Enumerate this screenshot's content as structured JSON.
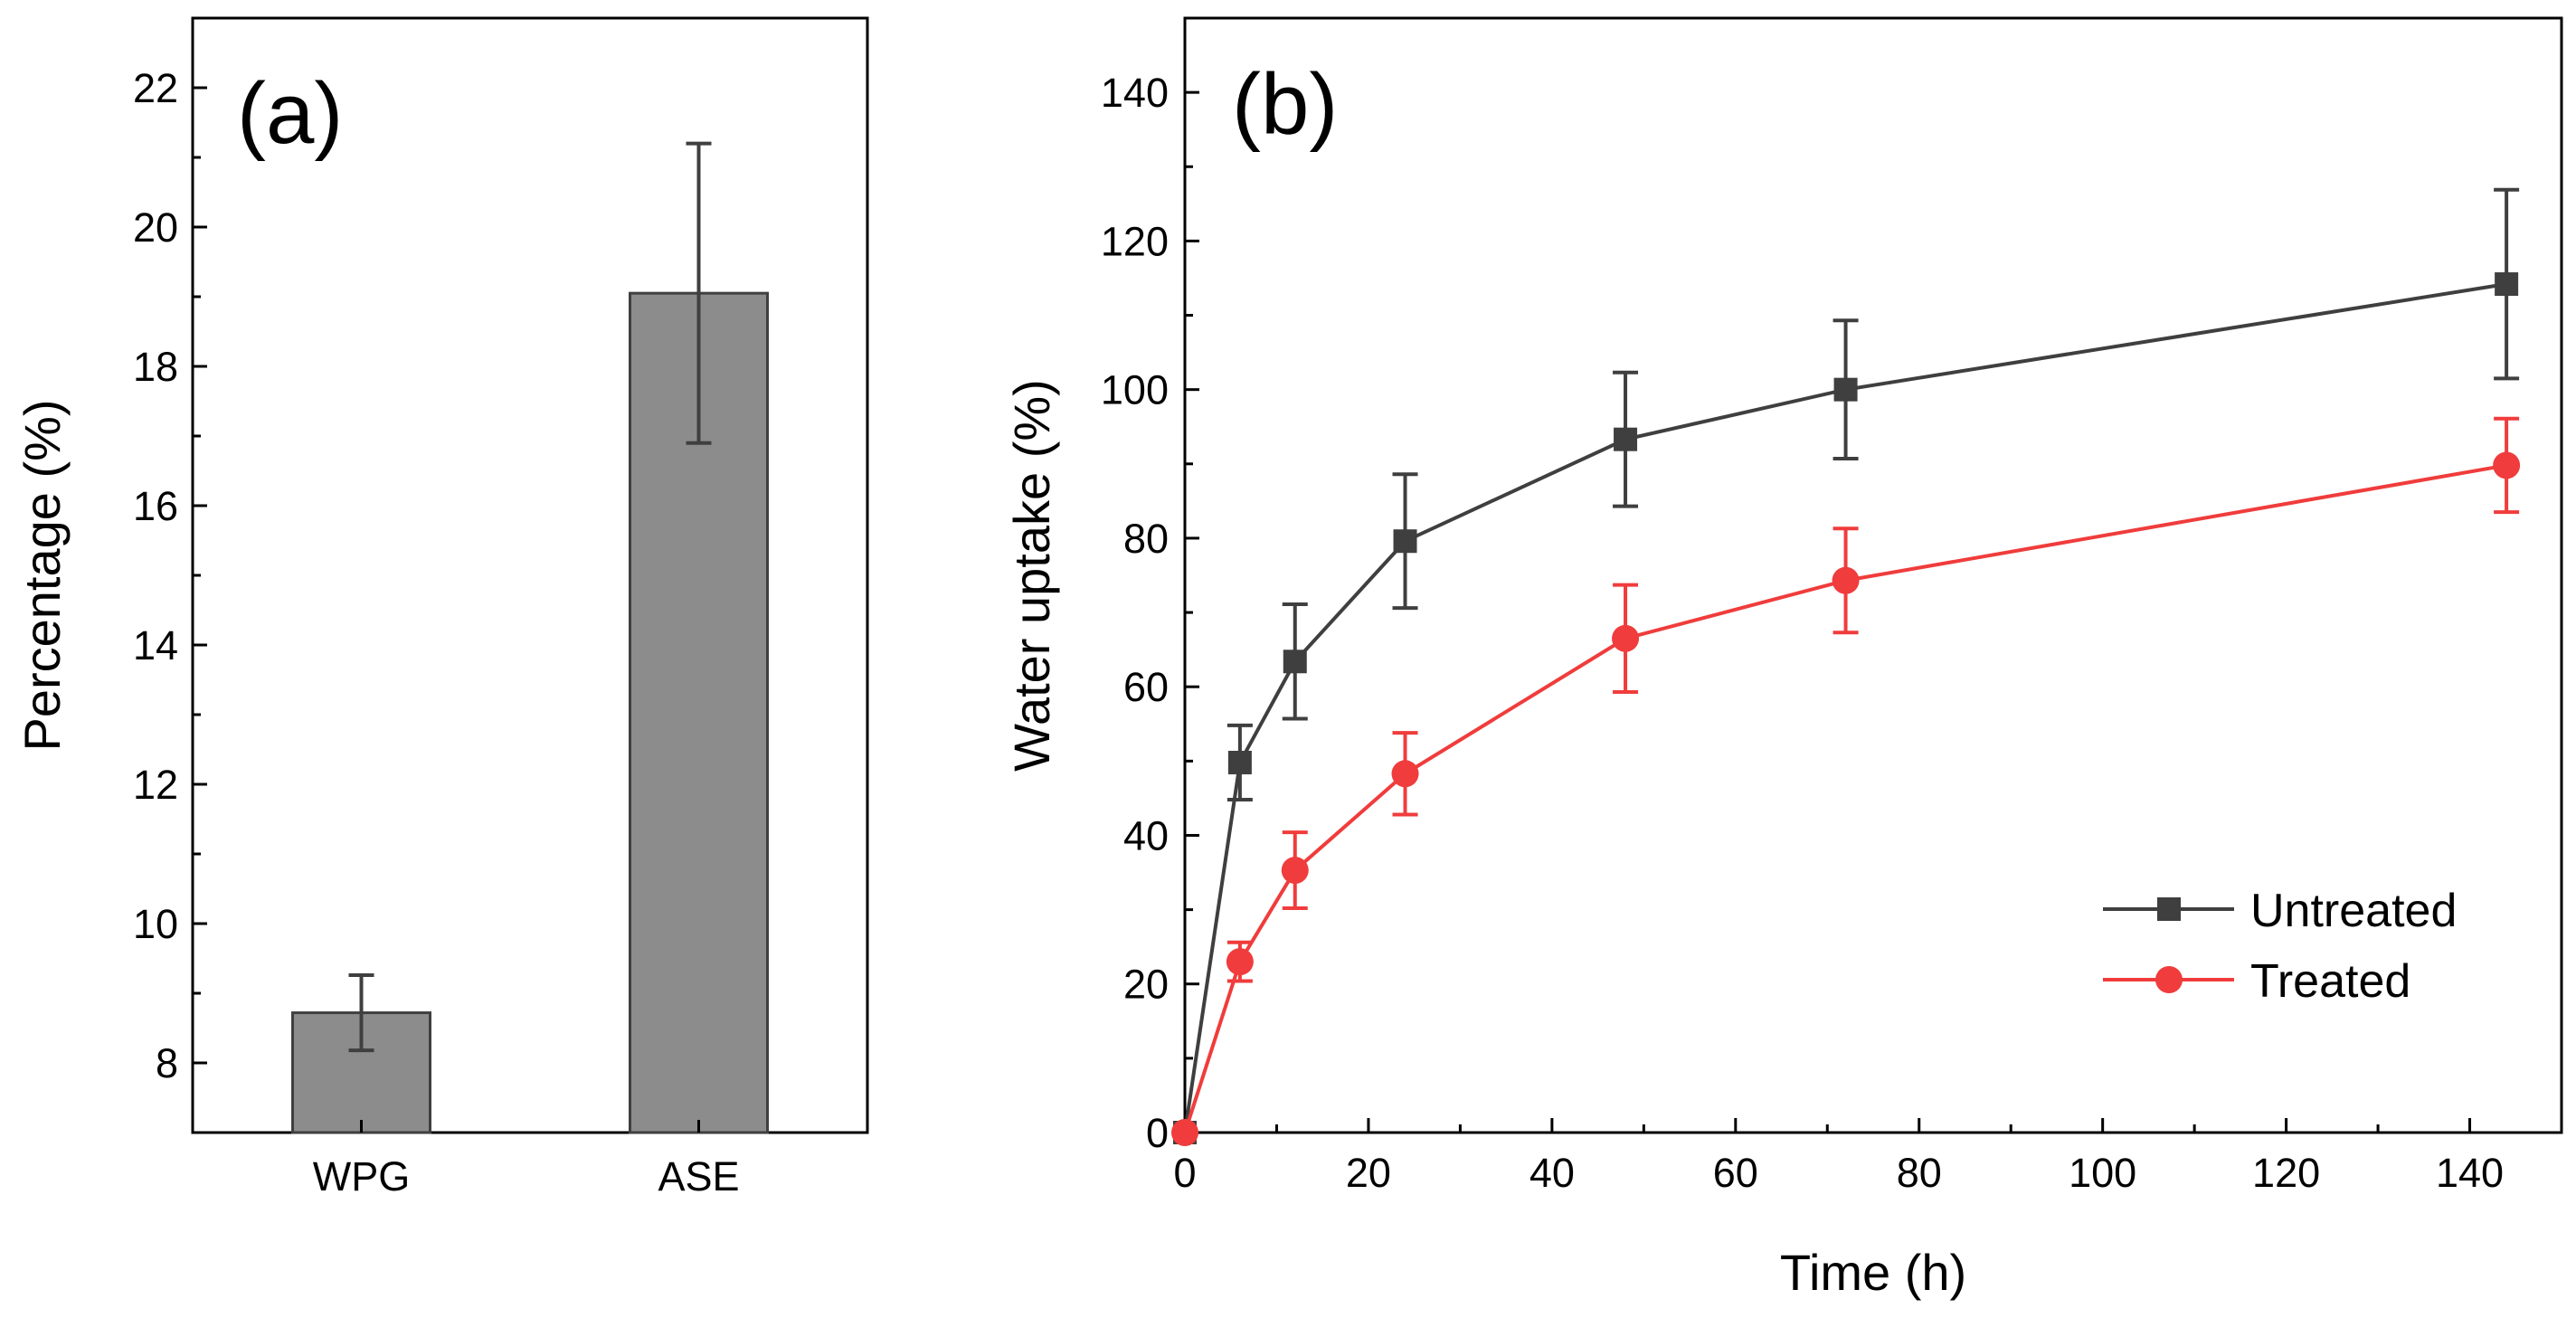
{
  "chart_data": [
    {
      "type": "bar",
      "panel_label": "(a)",
      "categories": [
        "WPG",
        "ASE"
      ],
      "values": [
        8.72,
        19.05
      ],
      "errors": [
        0.54,
        2.15
      ],
      "xlabel": "",
      "ylabel": "Percentage (%)",
      "ylim": [
        7.0,
        23.0
      ],
      "yticks": [
        8,
        10,
        12,
        14,
        16,
        18,
        20,
        22
      ],
      "ytick_labels": [
        "8",
        "10",
        "12",
        "14",
        "16",
        "18",
        "20",
        "22"
      ],
      "bar_color": "#8c8c8c",
      "grid": false
    },
    {
      "type": "line",
      "panel_label": "(b)",
      "xlabel": "Time (h)",
      "ylabel": "Water uptake (%)",
      "xlim": [
        0,
        150
      ],
      "ylim": [
        0,
        150
      ],
      "xticks": [
        0,
        20,
        40,
        60,
        80,
        100,
        120,
        140
      ],
      "xtick_labels": [
        "0",
        "20",
        "40",
        "60",
        "80",
        "100",
        "120",
        "140"
      ],
      "yticks": [
        0,
        20,
        40,
        60,
        80,
        100,
        120,
        140
      ],
      "ytick_labels": [
        "0",
        "20",
        "40",
        "60",
        "80",
        "100",
        "120",
        "140"
      ],
      "legend_position": "lower-right",
      "grid": false,
      "series": [
        {
          "name": "Untreated",
          "marker": "square",
          "color": "#3f3f3f",
          "x": [
            0,
            6,
            12,
            24,
            48,
            72,
            144
          ],
          "y": [
            0,
            49.8,
            63.4,
            79.6,
            93.3,
            100,
            114.2
          ],
          "err": [
            0,
            5,
            7.7,
            9,
            9,
            9.3,
            12.7
          ]
        },
        {
          "name": "Treated",
          "marker": "circle",
          "color": "#f03c3c",
          "x": [
            0,
            6,
            12,
            24,
            48,
            72,
            144
          ],
          "y": [
            0,
            23,
            35.3,
            48.3,
            66.5,
            74.3,
            89.8
          ],
          "err": [
            0,
            2.6,
            5.1,
            5.5,
            7.2,
            7,
            6.3
          ]
        }
      ]
    }
  ]
}
